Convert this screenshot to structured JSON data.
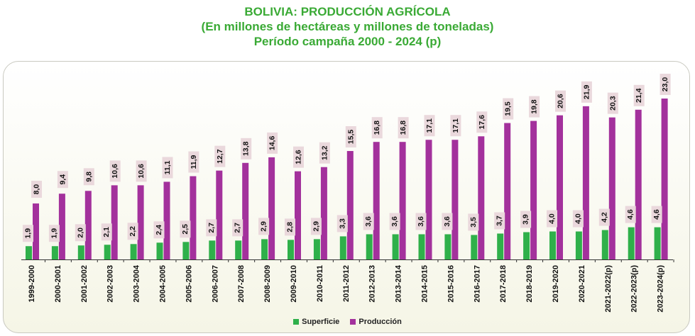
{
  "title": {
    "line1": "BOLIVIA: PRODUCCIÓN AGRÍCOLA",
    "line2": "(En millones de hectáreas y millones de toneladas)",
    "line3": "Período campaña 2000 - 2024 (p)"
  },
  "colors": {
    "title": "#3aaa35",
    "superficie": "#2fb04a",
    "produccion": "#a3319c",
    "label_box": "#ead8dc"
  },
  "chart_data": {
    "type": "bar",
    "categories": [
      "1999-2000",
      "2000-2001",
      "2001-2002",
      "2002-2003",
      "2003-2004",
      "2004-2005",
      "2005-2006",
      "2006-2007",
      "2007-2008",
      "2008-2009",
      "2009-2010",
      "2010-2011",
      "2011-2012",
      "2012-2013",
      "2013-2014",
      "2014-2015",
      "2015-2016",
      "2016-2017",
      "2017-2018",
      "2018-2019",
      "2019-2020",
      "2020-2021",
      "2021-2022(p)",
      "2022-2023(p)",
      "2023-2024(p)"
    ],
    "series": [
      {
        "name": "Superficie",
        "values": [
          1.9,
          1.9,
          2.0,
          2.1,
          2.2,
          2.4,
          2.5,
          2.7,
          2.7,
          2.9,
          2.8,
          2.9,
          3.3,
          3.6,
          3.6,
          3.6,
          3.6,
          3.5,
          3.7,
          3.9,
          4.0,
          4.0,
          4.2,
          4.6,
          4.6
        ]
      },
      {
        "name": "Producción",
        "values": [
          8.0,
          9.4,
          9.8,
          10.6,
          10.6,
          11.1,
          11.9,
          12.7,
          13.8,
          14.6,
          12.6,
          13.2,
          15.5,
          16.8,
          16.8,
          17.1,
          17.1,
          17.6,
          19.5,
          19.8,
          20.6,
          21.9,
          20.3,
          21.4,
          23.0
        ]
      }
    ],
    "data_labels": {
      "superficie": [
        "1,9",
        "1,9",
        "2,0",
        "2,1",
        "2,2",
        "2,4",
        "2,5",
        "2,7",
        "2,7",
        "2,9",
        "2,8",
        "2,9",
        "3,3",
        "3,6",
        "3,6",
        "3,6",
        "3,6",
        "3,5",
        "3,7",
        "3,9",
        "4,0",
        "4,0",
        "4,2",
        "4,6",
        "4,6"
      ],
      "produccion": [
        "8,0",
        "9,4",
        "9,8",
        "10,6",
        "10,6",
        "11,1",
        "11,9",
        "12,7",
        "13,8",
        "14,6",
        "12,6",
        "13,2",
        "15,5",
        "16,8",
        "16,8",
        "17,1",
        "17,1",
        "17,6",
        "19,5",
        "19,8",
        "20,6",
        "21,9",
        "20,3",
        "21,4",
        "23,0"
      ]
    },
    "legend": {
      "position": "bottom",
      "entries": [
        "Superficie",
        "Producción"
      ]
    },
    "ylim": [
      0,
      23
    ],
    "grid": false
  }
}
